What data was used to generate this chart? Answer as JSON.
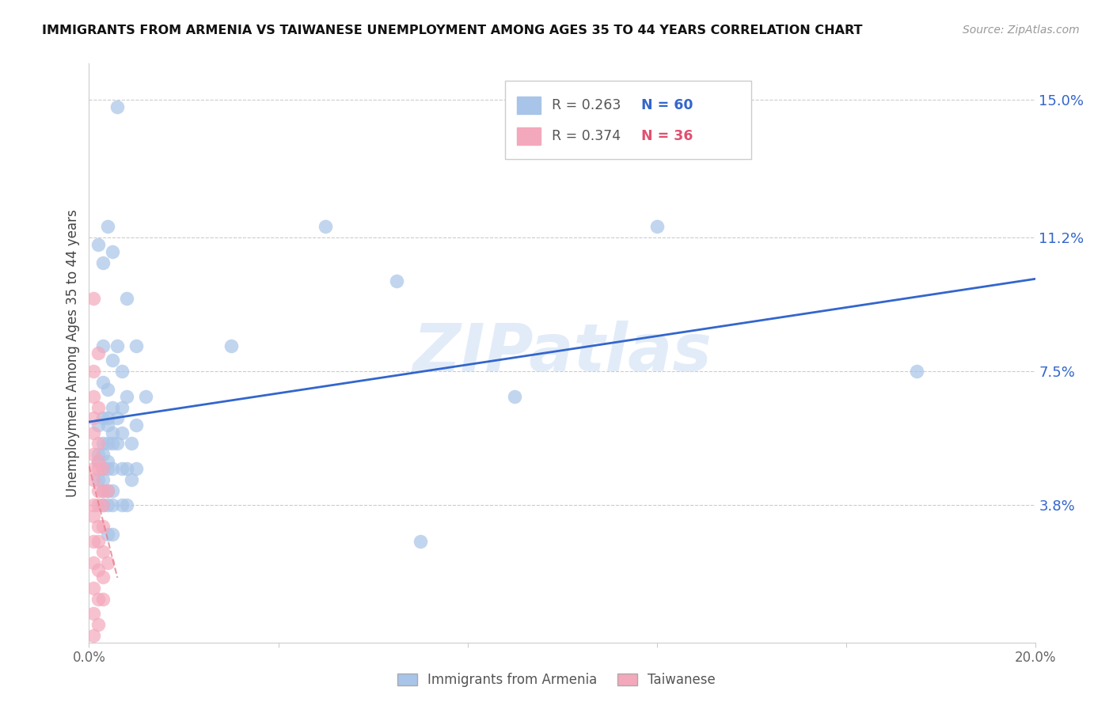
{
  "title": "IMMIGRANTS FROM ARMENIA VS TAIWANESE UNEMPLOYMENT AMONG AGES 35 TO 44 YEARS CORRELATION CHART",
  "source": "Source: ZipAtlas.com",
  "ylabel": "Unemployment Among Ages 35 to 44 years",
  "xlim": [
    0.0,
    0.2
  ],
  "ylim": [
    0.0,
    0.16
  ],
  "yticks": [
    0.038,
    0.075,
    0.112,
    0.15
  ],
  "ytick_labels": [
    "3.8%",
    "7.5%",
    "11.2%",
    "15.0%"
  ],
  "xticks": [
    0.0,
    0.04,
    0.08,
    0.12,
    0.16,
    0.2
  ],
  "legend_R1": "R = 0.263",
  "legend_N1": "N = 60",
  "legend_R2": "R = 0.374",
  "legend_N2": "N = 36",
  "watermark": "ZIPatlas",
  "blue_color": "#A8C4E8",
  "pink_color": "#F4A8BC",
  "line_blue": "#3366CC",
  "line_pink": "#E8808C",
  "blue_scatter": [
    [
      0.006,
      0.148
    ],
    [
      0.004,
      0.115
    ],
    [
      0.005,
      0.108
    ],
    [
      0.002,
      0.11
    ],
    [
      0.003,
      0.105
    ],
    [
      0.008,
      0.095
    ],
    [
      0.003,
      0.082
    ],
    [
      0.006,
      0.082
    ],
    [
      0.01,
      0.082
    ],
    [
      0.03,
      0.082
    ],
    [
      0.005,
      0.078
    ],
    [
      0.007,
      0.075
    ],
    [
      0.003,
      0.072
    ],
    [
      0.004,
      0.07
    ],
    [
      0.008,
      0.068
    ],
    [
      0.012,
      0.068
    ],
    [
      0.007,
      0.065
    ],
    [
      0.005,
      0.065
    ],
    [
      0.003,
      0.062
    ],
    [
      0.004,
      0.062
    ],
    [
      0.006,
      0.062
    ],
    [
      0.002,
      0.06
    ],
    [
      0.004,
      0.06
    ],
    [
      0.01,
      0.06
    ],
    [
      0.005,
      0.058
    ],
    [
      0.007,
      0.058
    ],
    [
      0.003,
      0.055
    ],
    [
      0.004,
      0.055
    ],
    [
      0.005,
      0.055
    ],
    [
      0.006,
      0.055
    ],
    [
      0.009,
      0.055
    ],
    [
      0.002,
      0.052
    ],
    [
      0.003,
      0.052
    ],
    [
      0.002,
      0.05
    ],
    [
      0.004,
      0.05
    ],
    [
      0.003,
      0.048
    ],
    [
      0.004,
      0.048
    ],
    [
      0.005,
      0.048
    ],
    [
      0.007,
      0.048
    ],
    [
      0.008,
      0.048
    ],
    [
      0.01,
      0.048
    ],
    [
      0.002,
      0.045
    ],
    [
      0.003,
      0.045
    ],
    [
      0.009,
      0.045
    ],
    [
      0.003,
      0.042
    ],
    [
      0.004,
      0.042
    ],
    [
      0.005,
      0.042
    ],
    [
      0.003,
      0.038
    ],
    [
      0.004,
      0.038
    ],
    [
      0.005,
      0.038
    ],
    [
      0.007,
      0.038
    ],
    [
      0.004,
      0.03
    ],
    [
      0.005,
      0.03
    ],
    [
      0.008,
      0.038
    ],
    [
      0.05,
      0.115
    ],
    [
      0.065,
      0.1
    ],
    [
      0.07,
      0.028
    ],
    [
      0.09,
      0.068
    ],
    [
      0.12,
      0.115
    ],
    [
      0.175,
      0.075
    ]
  ],
  "pink_scatter": [
    [
      0.001,
      0.095
    ],
    [
      0.002,
      0.08
    ],
    [
      0.001,
      0.075
    ],
    [
      0.001,
      0.068
    ],
    [
      0.002,
      0.065
    ],
    [
      0.001,
      0.062
    ],
    [
      0.001,
      0.058
    ],
    [
      0.002,
      0.055
    ],
    [
      0.001,
      0.052
    ],
    [
      0.002,
      0.05
    ],
    [
      0.001,
      0.048
    ],
    [
      0.002,
      0.048
    ],
    [
      0.003,
      0.048
    ],
    [
      0.001,
      0.045
    ],
    [
      0.002,
      0.042
    ],
    [
      0.003,
      0.042
    ],
    [
      0.001,
      0.038
    ],
    [
      0.002,
      0.038
    ],
    [
      0.003,
      0.038
    ],
    [
      0.001,
      0.035
    ],
    [
      0.002,
      0.032
    ],
    [
      0.003,
      0.032
    ],
    [
      0.001,
      0.028
    ],
    [
      0.002,
      0.028
    ],
    [
      0.003,
      0.025
    ],
    [
      0.001,
      0.022
    ],
    [
      0.002,
      0.02
    ],
    [
      0.003,
      0.018
    ],
    [
      0.001,
      0.015
    ],
    [
      0.002,
      0.012
    ],
    [
      0.003,
      0.012
    ],
    [
      0.001,
      0.008
    ],
    [
      0.002,
      0.005
    ],
    [
      0.001,
      0.002
    ],
    [
      0.004,
      0.042
    ],
    [
      0.004,
      0.022
    ]
  ]
}
